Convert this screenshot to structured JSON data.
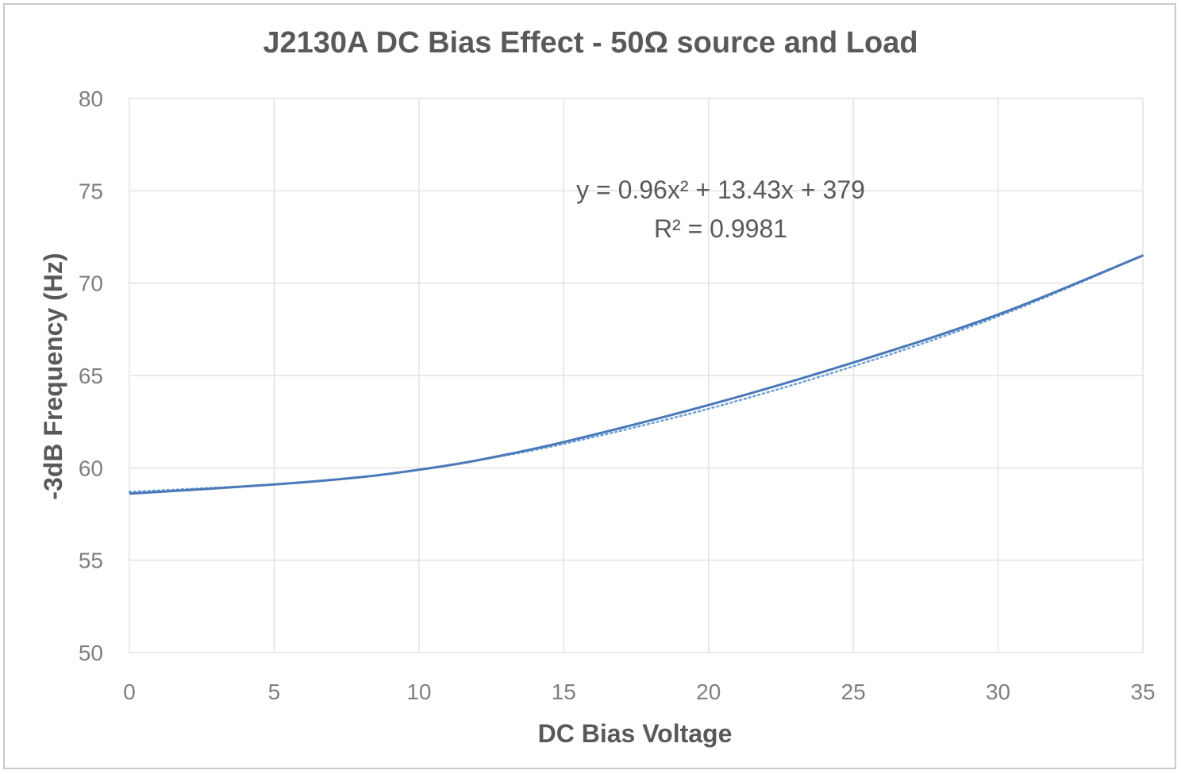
{
  "chart_data": {
    "type": "line",
    "title": "J2130A DC Bias Effect - 50Ω source and Load",
    "xlabel": "DC Bias Voltage",
    "ylabel": "-3dB Frequency (Hz)",
    "xlim": [
      0,
      35
    ],
    "ylim": [
      50,
      80
    ],
    "x_ticks": [
      "0",
      "5",
      "10",
      "15",
      "20",
      "25",
      "30",
      "35"
    ],
    "y_ticks": [
      "50",
      "55",
      "60",
      "65",
      "70",
      "75",
      "80"
    ],
    "grid": true,
    "legend": "none",
    "series": [
      {
        "style": "solid",
        "color": "#4a78b8",
        "x": [
          0,
          5,
          8,
          10,
          12,
          15,
          20,
          25,
          30,
          35
        ],
        "values": [
          58.6,
          59.1,
          59.5,
          59.9,
          60.4,
          61.4,
          63.4,
          65.7,
          68.3,
          71.5
        ]
      }
    ],
    "trendline": {
      "style": "dotted",
      "color": "#6a9fd8",
      "type": "polynomial",
      "order": 2,
      "equation_text": "y = 0.96x² + 13.43x + 379",
      "r2_text": "R² = 0.9981",
      "x": [
        0,
        5,
        8,
        10,
        12,
        15,
        20,
        25,
        30,
        35
      ],
      "values": [
        58.7,
        59.1,
        59.5,
        59.9,
        60.4,
        61.3,
        63.2,
        65.5,
        68.2,
        71.5
      ]
    }
  }
}
